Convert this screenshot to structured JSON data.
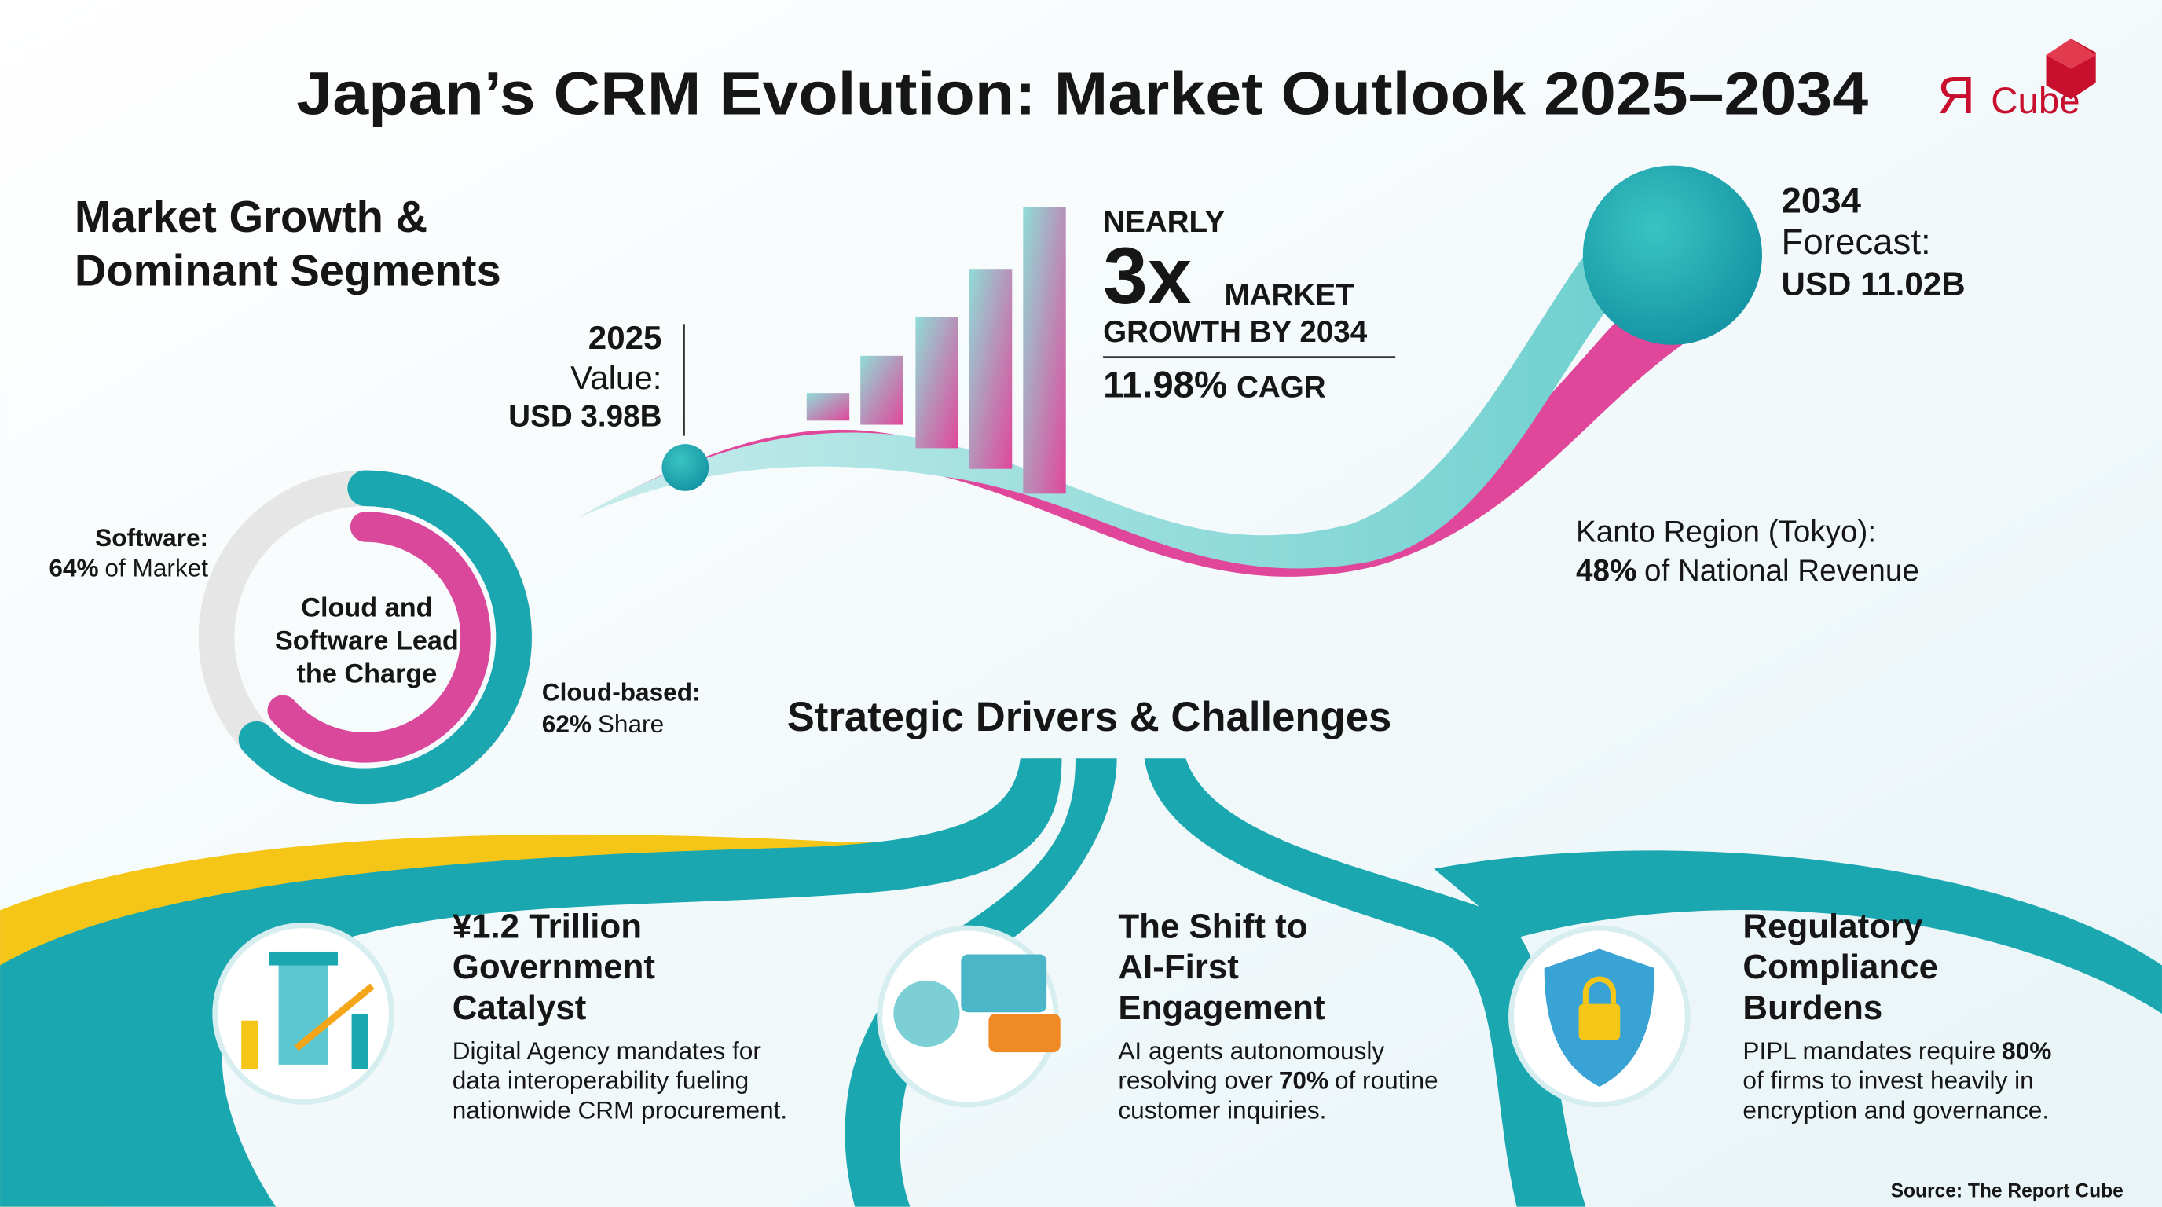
{
  "header": {
    "title": "Japan’s CRM Evolution: Market Outlook 2025–2034",
    "logo": {
      "mark": "Я",
      "word": "Cube"
    }
  },
  "growth": {
    "heading": [
      "Market Growth &",
      "Dominant Segments"
    ],
    "start": {
      "year": "2025",
      "label": "Value:",
      "value": "USD 3.98B"
    },
    "end": {
      "year": "2034",
      "label": "Forecast:",
      "value": "USD 11.02B"
    },
    "headline": {
      "prefix": "NEARLY",
      "multiple": "3x",
      "suffix": "MARKET",
      "line": "GROWTH BY 2034",
      "cagr": {
        "strong": "11.98%",
        "after": "CAGR"
      }
    },
    "region": [
      "Kanto Region (Tokyo):",
      {
        "strong": "48%",
        "after": "of National Revenue"
      }
    ],
    "donut": {
      "center": [
        "Cloud and",
        "Software Lead",
        "the Charge"
      ],
      "software": [
        "Software:",
        {
          "strong": "64%",
          "after": "of Market"
        }
      ],
      "cloud": [
        "Cloud-based:",
        {
          "strong": "62%",
          "after": "Share"
        }
      ]
    }
  },
  "drivers": {
    "heading": "Strategic Drivers & Challenges",
    "cards": [
      {
        "title": [
          "¥1.2 Trillion",
          "Government",
          "Catalyst"
        ],
        "body": [
          "Digital Agency mandates for",
          "data interoperability fueling",
          "nationwide CRM procurement."
        ]
      },
      {
        "title": [
          "The Shift to",
          "AI-First",
          "Engagement"
        ],
        "body": [
          "AI agents autonomously",
          {
            "text": "resolving over",
            "strong": "70%",
            "after": "of routine"
          },
          "customer inquiries."
        ]
      },
      {
        "title": [
          "Regulatory",
          "Compliance",
          "Burdens"
        ],
        "body": [
          {
            "text": "PIPL mandates require",
            "strong": "80%"
          },
          "of firms to invest heavily in",
          "encryption and governance."
        ]
      }
    ]
  },
  "source": "Source: The Report Cube"
}
